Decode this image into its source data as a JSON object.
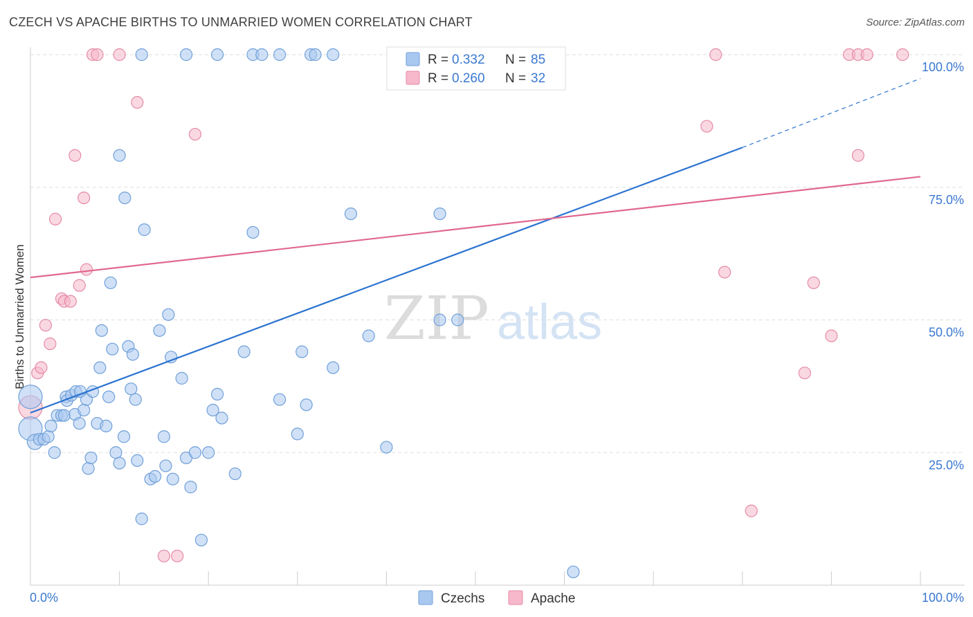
{
  "header": {
    "title": "CZECH VS APACHE BIRTHS TO UNMARRIED WOMEN CORRELATION CHART",
    "source": "Source: ZipAtlas.com"
  },
  "watermark": {
    "zip": "ZIP",
    "atlas": "atlas"
  },
  "colors": {
    "czech_fill": "#a9c8f0",
    "czech_stroke": "#6f9fd8",
    "czech_line": "#2a72d0",
    "apache_fill": "#f6b8ca",
    "apache_stroke": "#e58aa6",
    "apache_line": "#e06890",
    "axis_text": "#3a78d0",
    "grid": "#dddddd"
  },
  "legend_stats": {
    "r_label": "R =",
    "n_label": "N =",
    "czech": {
      "r": "0.332",
      "n": "85"
    },
    "apache": {
      "r": "0.260",
      "n": "32"
    }
  },
  "legend_bottom": {
    "czech": "Czechs",
    "apache": "Apache"
  },
  "chart_data": {
    "type": "scatter",
    "title": "CZECH VS APACHE BIRTHS TO UNMARRIED WOMEN CORRELATION CHART",
    "xlabel": "",
    "ylabel": "Births to Unmarried Women",
    "xlim": [
      0,
      100
    ],
    "ylim": [
      0,
      100
    ],
    "x_tick_labels": [
      "0.0%",
      "100.0%"
    ],
    "y_tick_labels": [
      "100.0%",
      "75.0%",
      "50.0%",
      "25.0%"
    ],
    "y_tick_values": [
      100,
      75,
      50,
      25
    ],
    "series": [
      {
        "name": "Czechs",
        "r": 0.332,
        "n": 85,
        "trend": {
          "x0": 0,
          "y0": 32.5,
          "x1": 80,
          "y1": 82.5,
          "dashed_to_x": 100,
          "dashed_to_y": 95.5
        },
        "points": [
          [
            0,
            35.5,
            "large"
          ],
          [
            0,
            29.5,
            "large"
          ],
          [
            0.5,
            27,
            "medium"
          ],
          [
            1,
            27.5
          ],
          [
            1.5,
            27.5
          ],
          [
            2,
            28
          ],
          [
            2.3,
            30
          ],
          [
            2.7,
            25
          ],
          [
            3,
            32
          ],
          [
            3.5,
            32
          ],
          [
            3.8,
            32
          ],
          [
            4,
            35.5
          ],
          [
            4.1,
            34.8
          ],
          [
            4.6,
            35.8
          ],
          [
            5,
            32.2
          ],
          [
            5.1,
            36.5
          ],
          [
            5.5,
            30.5
          ],
          [
            5.6,
            36.5
          ],
          [
            6,
            33
          ],
          [
            6.3,
            35
          ],
          [
            6.5,
            22
          ],
          [
            6.8,
            24
          ],
          [
            7,
            36.5
          ],
          [
            7.5,
            30.5
          ],
          [
            7.8,
            41
          ],
          [
            8,
            48
          ],
          [
            8.5,
            30
          ],
          [
            8.8,
            35.5
          ],
          [
            9,
            57
          ],
          [
            9.2,
            44.5
          ],
          [
            9.6,
            25
          ],
          [
            10,
            23
          ],
          [
            10,
            81
          ],
          [
            10.5,
            28
          ],
          [
            10.6,
            73
          ],
          [
            11,
            45
          ],
          [
            11.3,
            37
          ],
          [
            11.5,
            43.5
          ],
          [
            11.8,
            35
          ],
          [
            12,
            23.5
          ],
          [
            12.5,
            12.5
          ],
          [
            12.8,
            67
          ],
          [
            13.5,
            20
          ],
          [
            14,
            20.5
          ],
          [
            14.5,
            48
          ],
          [
            15,
            28
          ],
          [
            15.2,
            22.5
          ],
          [
            15.5,
            51
          ],
          [
            15.8,
            43
          ],
          [
            16,
            20
          ],
          [
            17,
            39
          ],
          [
            17.5,
            24
          ],
          [
            18,
            18.5
          ],
          [
            18.5,
            25
          ],
          [
            19.2,
            8.5
          ],
          [
            20,
            25
          ],
          [
            20.5,
            33
          ],
          [
            21,
            36
          ],
          [
            21.5,
            31.5
          ],
          [
            23,
            21
          ],
          [
            24,
            44
          ],
          [
            25,
            66.5
          ],
          [
            28,
            35
          ],
          [
            30,
            28.5
          ],
          [
            30.5,
            44
          ],
          [
            31,
            34
          ],
          [
            34,
            41
          ],
          [
            36,
            70
          ],
          [
            38,
            47
          ],
          [
            40,
            26
          ],
          [
            46,
            70
          ],
          [
            46,
            50
          ],
          [
            48,
            50
          ],
          [
            61,
            2.5
          ],
          [
            12.5,
            100
          ],
          [
            17.5,
            100
          ],
          [
            21,
            100
          ],
          [
            25,
            100
          ],
          [
            26,
            100
          ],
          [
            28,
            100
          ],
          [
            31.5,
            100
          ],
          [
            32,
            100
          ],
          [
            34,
            100
          ]
        ]
      },
      {
        "name": "Apache",
        "r": 0.26,
        "n": 32,
        "trend": {
          "x0": 0,
          "y0": 58,
          "x1": 100,
          "y1": 77
        },
        "points": [
          [
            0,
            33.5,
            "large"
          ],
          [
            0.8,
            40
          ],
          [
            1.2,
            41
          ],
          [
            1.7,
            49
          ],
          [
            2.2,
            45.5
          ],
          [
            2.8,
            69
          ],
          [
            3.5,
            54
          ],
          [
            3.8,
            53.5
          ],
          [
            4.5,
            53.5
          ],
          [
            5,
            81
          ],
          [
            5.5,
            56.5
          ],
          [
            6,
            73
          ],
          [
            6.3,
            59.5
          ],
          [
            7,
            100
          ],
          [
            7.5,
            100
          ],
          [
            10,
            100
          ],
          [
            12,
            91
          ],
          [
            15,
            5.5
          ],
          [
            16.5,
            5.5
          ],
          [
            18.5,
            85
          ],
          [
            76,
            86.5
          ],
          [
            77,
            100
          ],
          [
            78,
            59
          ],
          [
            81,
            14
          ],
          [
            87,
            40
          ],
          [
            88,
            57
          ],
          [
            90,
            47
          ],
          [
            92,
            100
          ],
          [
            93,
            100
          ],
          [
            93,
            81
          ],
          [
            94,
            100
          ],
          [
            98,
            100
          ]
        ]
      }
    ]
  }
}
